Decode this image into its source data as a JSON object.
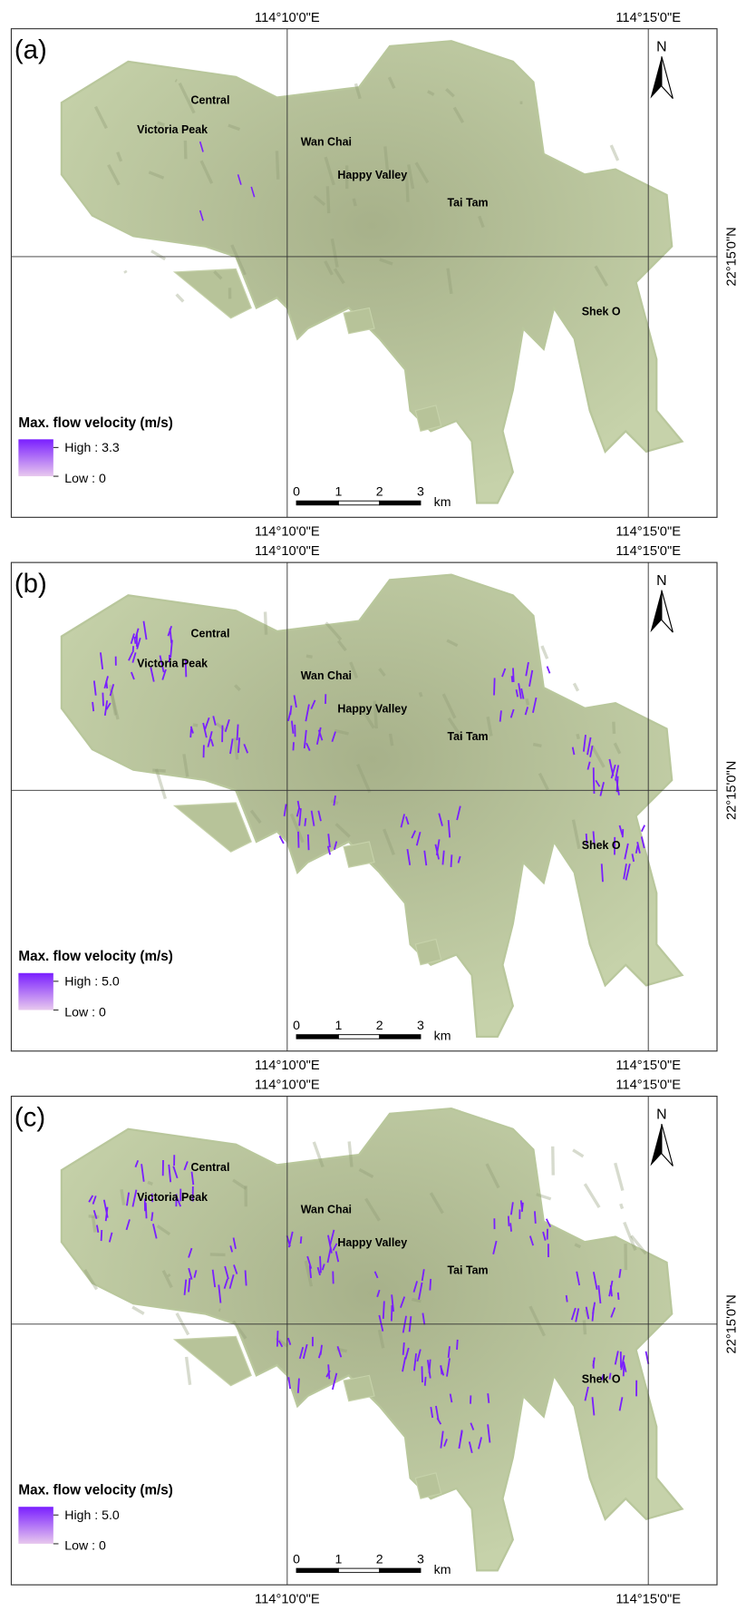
{
  "panels": [
    {
      "label": "(a)",
      "top_labels": [
        "114°10'0\"E",
        "114°15'0\"E"
      ],
      "bottom_labels": [
        "114°10'0\"E",
        "114°15'0\"E"
      ],
      "right_label": "22°15'0\"N",
      "north": "N",
      "places": [
        "Central",
        "Victoria Peak",
        "Wan Chai",
        "Happy Valley",
        "Tai Tam",
        "Shek O"
      ],
      "legend": {
        "title": "Max. flow velocity (m/s)",
        "high": "High : 3.3",
        "low": "Low : 0"
      },
      "scale": {
        "ticks": [
          "0",
          "1",
          "2",
          "3"
        ],
        "unit": "km"
      }
    },
    {
      "label": "(b)",
      "top_labels": [
        "114°10'0\"E",
        "114°15'0\"E"
      ],
      "bottom_labels": [
        "114°10'0\"E",
        "114°15'0\"E"
      ],
      "right_label": "22°15'0\"N",
      "north": "N",
      "places": [
        "Central",
        "Victoria Peak",
        "Wan Chai",
        "Happy Valley",
        "Tai Tam",
        "Shek O"
      ],
      "legend": {
        "title": "Max. flow velocity (m/s)",
        "high": "High : 5.0",
        "low": "Low : 0"
      },
      "scale": {
        "ticks": [
          "0",
          "1",
          "2",
          "3"
        ],
        "unit": "km"
      }
    },
    {
      "label": "(c)",
      "top_labels": [
        "114°10'0\"E",
        "114°15'0\"E"
      ],
      "bottom_labels": [
        "114°10'0\"E",
        "114°15'0\"E"
      ],
      "right_label": "22°15'0\"N",
      "north": "N",
      "places": [
        "Central",
        "Victoria Peak",
        "Wan Chai",
        "Happy Valley",
        "Tai Tam",
        "Shek O"
      ],
      "legend": {
        "title": "Max. flow velocity (m/s)",
        "high": "High : 5.0",
        "low": "Low : 0"
      },
      "scale": {
        "ticks": [
          "0",
          "1",
          "2",
          "3"
        ],
        "unit": "km"
      }
    }
  ]
}
